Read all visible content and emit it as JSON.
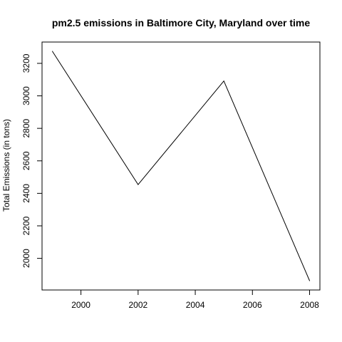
{
  "chart_data": {
    "type": "line",
    "title": "pm2.5 emissions in Baltimore City, Maryland over time",
    "xlabel": "",
    "ylabel": "Total Emissions (in tons)",
    "x": [
      1999,
      2002,
      2005,
      2008
    ],
    "series": [
      {
        "values": [
          3274.18,
          2453.92,
          3091.35,
          1862.28
        ]
      }
    ],
    "xlim": [
      1999,
      2008
    ],
    "ylim": [
      1862.28,
      3274.18
    ],
    "xticks": [
      2000,
      2002,
      2004,
      2006,
      2008
    ],
    "yticks": [
      2000,
      2200,
      2400,
      2600,
      2800,
      3000,
      3200
    ],
    "xtick_labels": [
      "2000",
      "2002",
      "2004",
      "2006",
      "2008"
    ],
    "ytick_labels": [
      "2000",
      "2200",
      "2400",
      "2600",
      "2800",
      "3000",
      "3200"
    ],
    "grid": false,
    "legend": "none",
    "colors": {
      "line": "#000000",
      "axis": "#000000",
      "background": "#ffffff"
    }
  }
}
